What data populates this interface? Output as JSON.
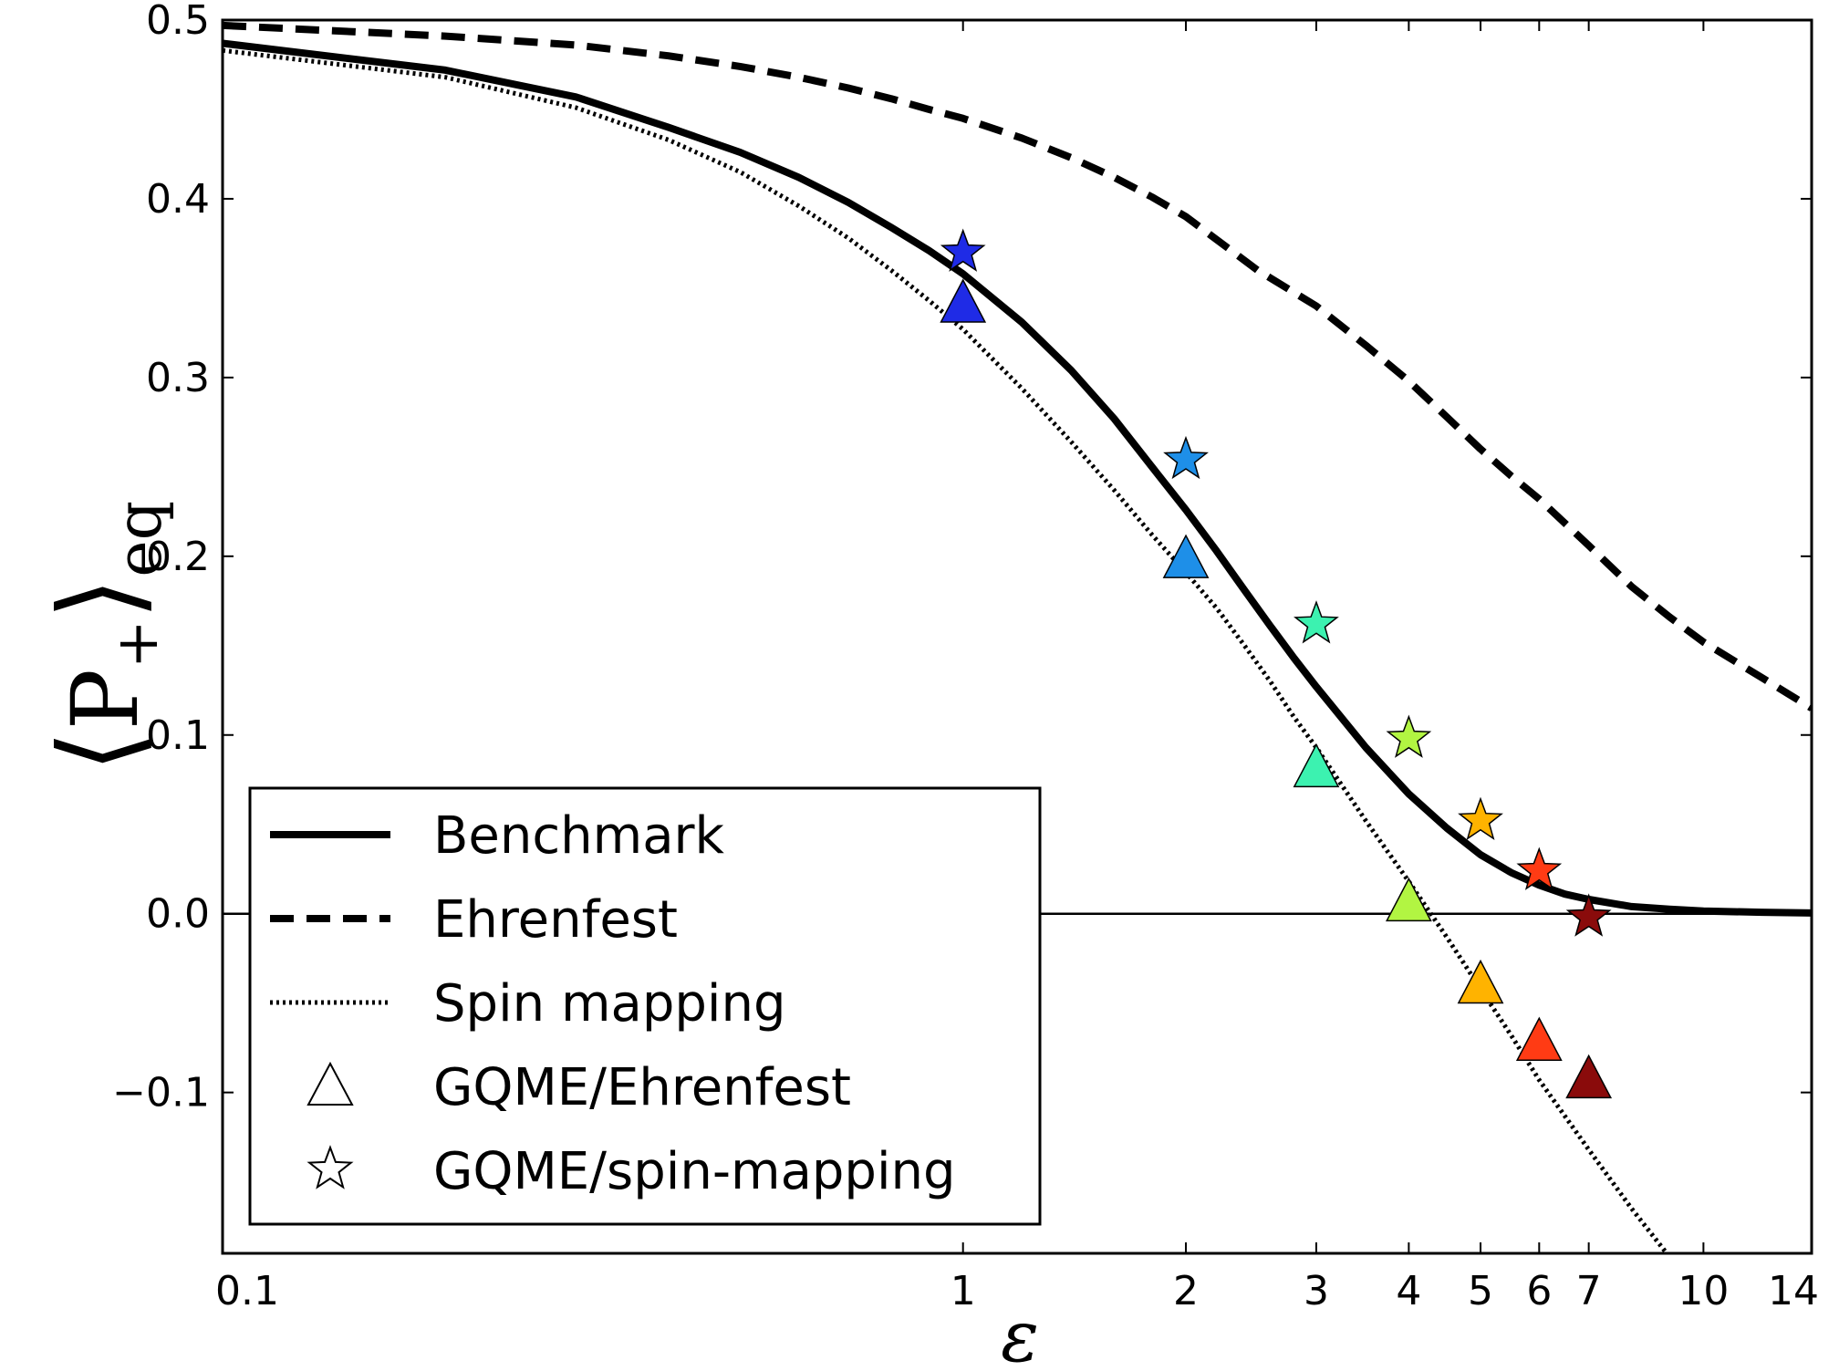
{
  "chart_data": {
    "type": "line",
    "xlabel": "ε",
    "ylabel": {
      "bracket_open": "⟨",
      "symbol": "P",
      "subscript": "+",
      "bracket_close": "⟩",
      "eq": "eq"
    },
    "xscale": "log",
    "xlim": [
      0.1,
      14
    ],
    "ylim": [
      -0.19,
      0.5
    ],
    "x_ticks": [
      0.1,
      1,
      2,
      3,
      4,
      5,
      6,
      7,
      10,
      14
    ],
    "x_tick_labels": [
      "0.1",
      "1",
      "2",
      "3",
      "4",
      "5",
      "6",
      "7",
      "10",
      "14"
    ],
    "y_ticks": [
      -0.1,
      0.0,
      0.1,
      0.2,
      0.3,
      0.4,
      0.5
    ],
    "y_tick_labels": [
      "−0.1",
      "0.0",
      "0.1",
      "0.2",
      "0.3",
      "0.4",
      "0.5"
    ],
    "grid": false,
    "zero_line": true,
    "legend_position": "lower-left",
    "series": [
      {
        "name": "Benchmark",
        "style": "solid",
        "color": "#000000",
        "x": [
          0.1,
          0.2,
          0.3,
          0.4,
          0.5,
          0.6,
          0.7,
          0.8,
          0.9,
          1.0,
          1.2,
          1.4,
          1.6,
          1.8,
          2.0,
          2.2,
          2.4,
          2.6,
          2.8,
          3.0,
          3.5,
          4.0,
          4.5,
          5.0,
          5.5,
          6.0,
          6.5,
          7.0,
          8.0,
          9.0,
          10.0,
          12.0,
          14.0
        ],
        "y": [
          0.487,
          0.472,
          0.457,
          0.44,
          0.426,
          0.412,
          0.398,
          0.384,
          0.371,
          0.358,
          0.331,
          0.304,
          0.277,
          0.25,
          0.226,
          0.203,
          0.181,
          0.161,
          0.143,
          0.127,
          0.093,
          0.067,
          0.048,
          0.033,
          0.023,
          0.016,
          0.011,
          0.008,
          0.004,
          0.0025,
          0.0015,
          0.0008,
          0.0004
        ]
      },
      {
        "name": "Ehrenfest",
        "style": "dashed",
        "color": "#000000",
        "x": [
          0.1,
          0.2,
          0.3,
          0.4,
          0.5,
          0.6,
          0.7,
          0.8,
          0.9,
          1.0,
          1.2,
          1.4,
          1.6,
          1.8,
          2.0,
          2.5,
          3.0,
          3.5,
          4.0,
          4.5,
          5.0,
          5.5,
          6.0,
          7.0,
          8.0,
          9.0,
          10.0,
          12.0,
          14.0
        ],
        "y": [
          0.497,
          0.491,
          0.486,
          0.48,
          0.474,
          0.468,
          0.462,
          0.456,
          0.45,
          0.445,
          0.434,
          0.423,
          0.412,
          0.401,
          0.39,
          0.36,
          0.34,
          0.318,
          0.298,
          0.278,
          0.26,
          0.245,
          0.232,
          0.206,
          0.183,
          0.166,
          0.152,
          0.132,
          0.115
        ]
      },
      {
        "name": "Spin mapping",
        "style": "dotted",
        "color": "#000000",
        "x": [
          0.1,
          0.2,
          0.3,
          0.4,
          0.5,
          0.6,
          0.7,
          0.8,
          0.9,
          1.0,
          1.2,
          1.4,
          1.6,
          1.8,
          2.0,
          2.2,
          2.4,
          2.6,
          2.8,
          3.0,
          3.5,
          4.0,
          4.5,
          5.0,
          5.5,
          6.0,
          7.0,
          8.0,
          9.0
        ],
        "y": [
          0.483,
          0.468,
          0.451,
          0.433,
          0.415,
          0.396,
          0.378,
          0.36,
          0.343,
          0.327,
          0.294,
          0.264,
          0.237,
          0.212,
          0.191,
          0.171,
          0.15,
          0.13,
          0.11,
          0.093,
          0.052,
          0.018,
          -0.013,
          -0.042,
          -0.068,
          -0.093,
          -0.132,
          -0.165,
          -0.192
        ]
      },
      {
        "name": "GQME/Ehrenfest",
        "marker": "triangle",
        "x": [
          1,
          2,
          3,
          4,
          5,
          6,
          7
        ],
        "y": [
          0.34,
          0.197,
          0.08,
          0.005,
          -0.041,
          -0.073,
          -0.094
        ],
        "colors": [
          "#1f2be6",
          "#1e8fe8",
          "#3cf2b0",
          "#b2f542",
          "#ffb300",
          "#ff3b14",
          "#8a0b0b"
        ]
      },
      {
        "name": "GQME/spin-mapping",
        "marker": "star",
        "x": [
          1,
          2,
          3,
          4,
          5,
          6,
          7
        ],
        "y": [
          0.37,
          0.254,
          0.162,
          0.098,
          0.052,
          0.024,
          -0.002
        ],
        "colors": [
          "#1f2be6",
          "#1e8fe8",
          "#3cf2b0",
          "#b2f542",
          "#ffb300",
          "#ff3b14",
          "#8a0b0b"
        ]
      }
    ]
  }
}
